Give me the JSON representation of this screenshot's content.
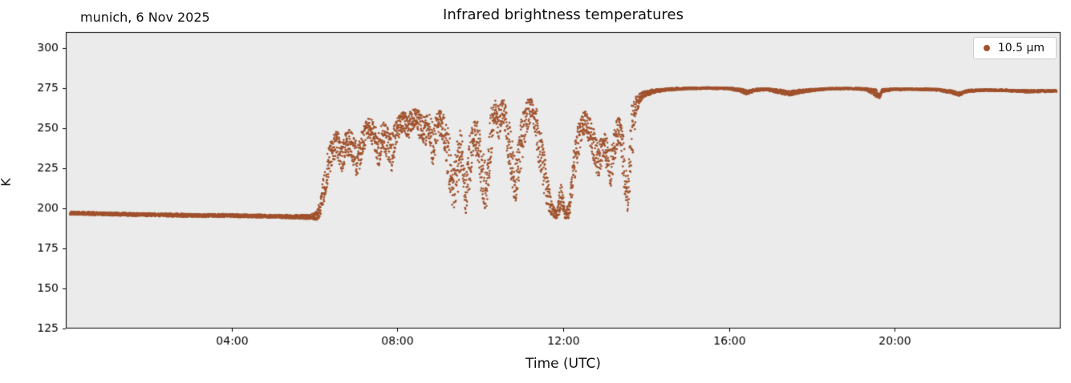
{
  "figure": {
    "title": "Infrared brightness temperatures",
    "subtitle": "munich, 6 Nov 2025",
    "xlabel": "Time (UTC)",
    "ylabel": "K",
    "legend_label": "10.5 µm"
  },
  "chart_data": {
    "type": "scatter",
    "title": "Infrared brightness temperatures",
    "subtitle": "munich, 6 Nov 2025",
    "xlabel": "Time (UTC)",
    "ylabel": "K",
    "x_units": "hours UTC",
    "y_units": "K",
    "xlim": [
      0,
      24
    ],
    "ylim": [
      125,
      310
    ],
    "grid": false,
    "plot_bg": "#ebebeb",
    "axis_color": "#000000",
    "legend": {
      "position": "upper right",
      "entries": [
        "10.5 µm"
      ]
    },
    "xticks": [
      {
        "value": 4,
        "label": "04:00"
      },
      {
        "value": 8,
        "label": "08:00"
      },
      {
        "value": 12,
        "label": "12:00"
      },
      {
        "value": 16,
        "label": "16:00"
      },
      {
        "value": 20,
        "label": "20:00"
      }
    ],
    "yticks": [
      125,
      150,
      175,
      200,
      225,
      250,
      275,
      300
    ],
    "series": [
      {
        "name": "10.5 µm",
        "color": "#a0522d",
        "marker": "circle",
        "marker_size": 1.3,
        "sample_step_hours": 0.0035,
        "anchor_format": [
          "time_hours",
          "mean_K",
          "spread_K"
        ],
        "anchors": [
          [
            0.1,
            197.0,
            1.0
          ],
          [
            0.5,
            196.8,
            1.0
          ],
          [
            1.0,
            196.5,
            1.0
          ],
          [
            1.5,
            196.2,
            1.0
          ],
          [
            2.0,
            196.0,
            1.0
          ],
          [
            2.5,
            195.8,
            1.0
          ],
          [
            3.0,
            195.6,
            1.0
          ],
          [
            3.5,
            195.5,
            1.0
          ],
          [
            4.0,
            195.5,
            1.0
          ],
          [
            4.5,
            195.2,
            1.0
          ],
          [
            5.0,
            195.0,
            1.0
          ],
          [
            5.5,
            194.8,
            1.1
          ],
          [
            5.9,
            194.5,
            1.4
          ],
          [
            6.05,
            195.5,
            3.0
          ],
          [
            6.15,
            201.0,
            7.0
          ],
          [
            6.25,
            216.0,
            10.0
          ],
          [
            6.35,
            229.0,
            10.0
          ],
          [
            6.45,
            238.0,
            8.0
          ],
          [
            6.55,
            240.0,
            9.0
          ],
          [
            6.65,
            232.0,
            10.0
          ],
          [
            6.75,
            238.0,
            9.0
          ],
          [
            6.85,
            242.0,
            8.0
          ],
          [
            6.95,
            235.0,
            10.0
          ],
          [
            7.05,
            228.0,
            12.0
          ],
          [
            7.15,
            240.0,
            9.0
          ],
          [
            7.25,
            248.0,
            7.0
          ],
          [
            7.35,
            250.0,
            7.0
          ],
          [
            7.45,
            244.0,
            9.0
          ],
          [
            7.55,
            236.0,
            11.0
          ],
          [
            7.65,
            247.0,
            8.0
          ],
          [
            7.75,
            240.0,
            11.0
          ],
          [
            7.85,
            233.0,
            13.0
          ],
          [
            7.95,
            245.0,
            9.0
          ],
          [
            8.05,
            252.0,
            7.0
          ],
          [
            8.15,
            255.0,
            6.0
          ],
          [
            8.25,
            250.0,
            8.0
          ],
          [
            8.35,
            255.0,
            7.0
          ],
          [
            8.45,
            257.0,
            6.0
          ],
          [
            8.55,
            251.0,
            9.0
          ],
          [
            8.65,
            247.0,
            10.0
          ],
          [
            8.75,
            252.0,
            8.0
          ],
          [
            8.85,
            238.0,
            16.0
          ],
          [
            8.95,
            250.0,
            9.0
          ],
          [
            9.05,
            254.0,
            8.0
          ],
          [
            9.15,
            246.0,
            11.0
          ],
          [
            9.25,
            230.0,
            18.0
          ],
          [
            9.35,
            212.0,
            14.0
          ],
          [
            9.45,
            226.0,
            18.0
          ],
          [
            9.55,
            238.0,
            14.0
          ],
          [
            9.65,
            206.0,
            11.0
          ],
          [
            9.75,
            230.0,
            18.0
          ],
          [
            9.85,
            248.0,
            10.0
          ],
          [
            9.95,
            240.0,
            14.0
          ],
          [
            10.05,
            220.0,
            18.0
          ],
          [
            10.15,
            212.0,
            14.0
          ],
          [
            10.25,
            244.0,
            18.0
          ],
          [
            10.35,
            260.0,
            8.0
          ],
          [
            10.45,
            254.0,
            11.0
          ],
          [
            10.55,
            263.0,
            7.0
          ],
          [
            10.65,
            248.0,
            14.0
          ],
          [
            10.75,
            231.0,
            18.0
          ],
          [
            10.85,
            216.0,
            14.0
          ],
          [
            10.95,
            235.0,
            18.0
          ],
          [
            11.05,
            250.0,
            13.0
          ],
          [
            11.15,
            259.0,
            9.0
          ],
          [
            11.25,
            263.0,
            7.0
          ],
          [
            11.35,
            250.0,
            13.0
          ],
          [
            11.45,
            236.0,
            16.0
          ],
          [
            11.55,
            221.0,
            13.0
          ],
          [
            11.65,
            206.0,
            9.0
          ],
          [
            11.75,
            198.0,
            4.0
          ],
          [
            11.85,
            196.0,
            2.5
          ],
          [
            11.95,
            208.0,
            10.0
          ],
          [
            12.05,
            196.0,
            2.5
          ],
          [
            12.15,
            199.0,
            5.0
          ],
          [
            12.25,
            224.0,
            13.0
          ],
          [
            12.35,
            240.0,
            11.0
          ],
          [
            12.45,
            250.0,
            9.0
          ],
          [
            12.55,
            254.0,
            7.0
          ],
          [
            12.65,
            247.0,
            9.0
          ],
          [
            12.75,
            238.0,
            11.0
          ],
          [
            12.85,
            229.0,
            11.0
          ],
          [
            12.95,
            239.0,
            9.0
          ],
          [
            13.05,
            234.0,
            11.0
          ],
          [
            13.15,
            226.0,
            13.0
          ],
          [
            13.25,
            241.0,
            11.0
          ],
          [
            13.35,
            251.0,
            9.0
          ],
          [
            13.45,
            231.0,
            16.0
          ],
          [
            13.55,
            206.0,
            9.0
          ],
          [
            13.65,
            242.0,
            22.0
          ],
          [
            13.75,
            264.0,
            7.0
          ],
          [
            13.85,
            269.0,
            3.0
          ],
          [
            13.95,
            271.0,
            2.0
          ],
          [
            14.1,
            272.5,
            1.5
          ],
          [
            14.3,
            273.5,
            1.0
          ],
          [
            14.6,
            274.3,
            0.8
          ],
          [
            15.0,
            274.8,
            0.6
          ],
          [
            15.5,
            275.0,
            0.5
          ],
          [
            16.0,
            274.8,
            0.6
          ],
          [
            16.3,
            273.5,
            1.2
          ],
          [
            16.45,
            272.0,
            1.5
          ],
          [
            16.6,
            273.8,
            0.9
          ],
          [
            16.9,
            274.3,
            0.7
          ],
          [
            17.2,
            273.0,
            1.3
          ],
          [
            17.45,
            271.8,
            1.5
          ],
          [
            17.7,
            272.8,
            1.2
          ],
          [
            18.0,
            273.8,
            0.8
          ],
          [
            18.4,
            274.6,
            0.5
          ],
          [
            18.9,
            274.8,
            0.5
          ],
          [
            19.3,
            274.3,
            0.7
          ],
          [
            19.55,
            272.0,
            2.5
          ],
          [
            19.62,
            269.5,
            1.5
          ],
          [
            19.7,
            273.5,
            1.0
          ],
          [
            20.0,
            274.3,
            0.6
          ],
          [
            20.5,
            274.4,
            0.5
          ],
          [
            21.0,
            274.0,
            0.7
          ],
          [
            21.35,
            272.8,
            1.0
          ],
          [
            21.55,
            271.3,
            1.3
          ],
          [
            21.75,
            273.2,
            0.8
          ],
          [
            22.2,
            273.8,
            0.6
          ],
          [
            22.7,
            273.6,
            0.6
          ],
          [
            23.2,
            273.0,
            0.8
          ],
          [
            23.6,
            273.2,
            0.7
          ],
          [
            23.9,
            273.3,
            0.6
          ]
        ]
      }
    ]
  }
}
